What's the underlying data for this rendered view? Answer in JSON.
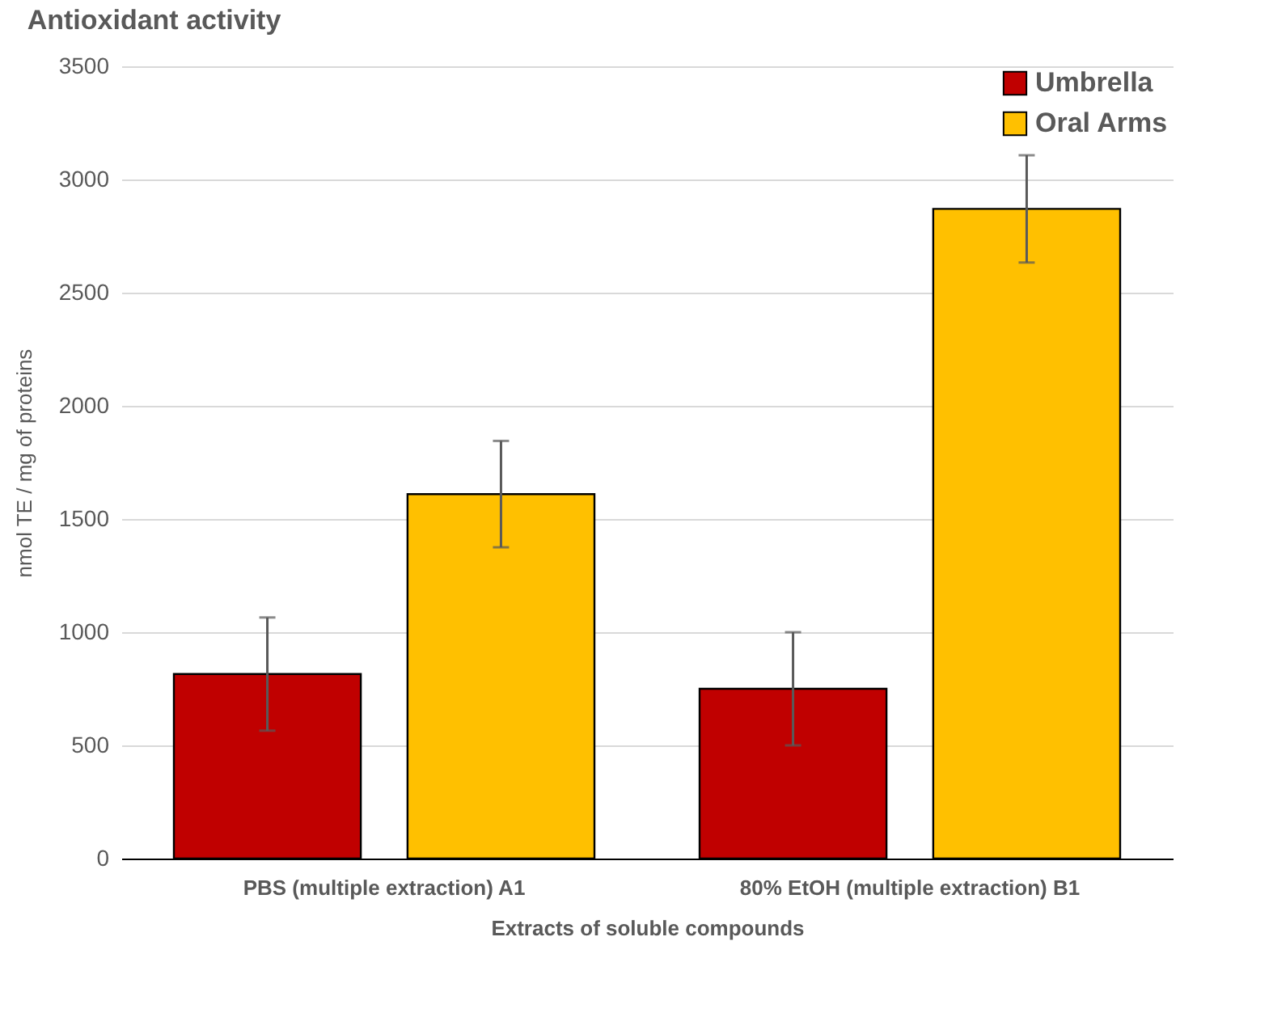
{
  "chart_data": {
    "type": "bar",
    "title": "Antioxidant activity",
    "xlabel": "Extracts of soluble compounds",
    "ylabel": "nmol TE / mg of proteins",
    "categories": [
      "PBS (multiple extraction) A1",
      "80% EtOH (multiple extraction) B1"
    ],
    "series": [
      {
        "name": "Umbrella",
        "color": "#c00000",
        "values": [
          815,
          750
        ],
        "errors": [
          250,
          250
        ]
      },
      {
        "name": "Oral Arms",
        "color": "#ffc000",
        "values": [
          1610,
          2870
        ],
        "errors": [
          235,
          237
        ]
      }
    ],
    "ylim": [
      0,
      3500
    ],
    "yticks": [
      0,
      500,
      1000,
      1500,
      2000,
      2500,
      3000,
      3500
    ],
    "grid": "y",
    "legend": "top right"
  }
}
